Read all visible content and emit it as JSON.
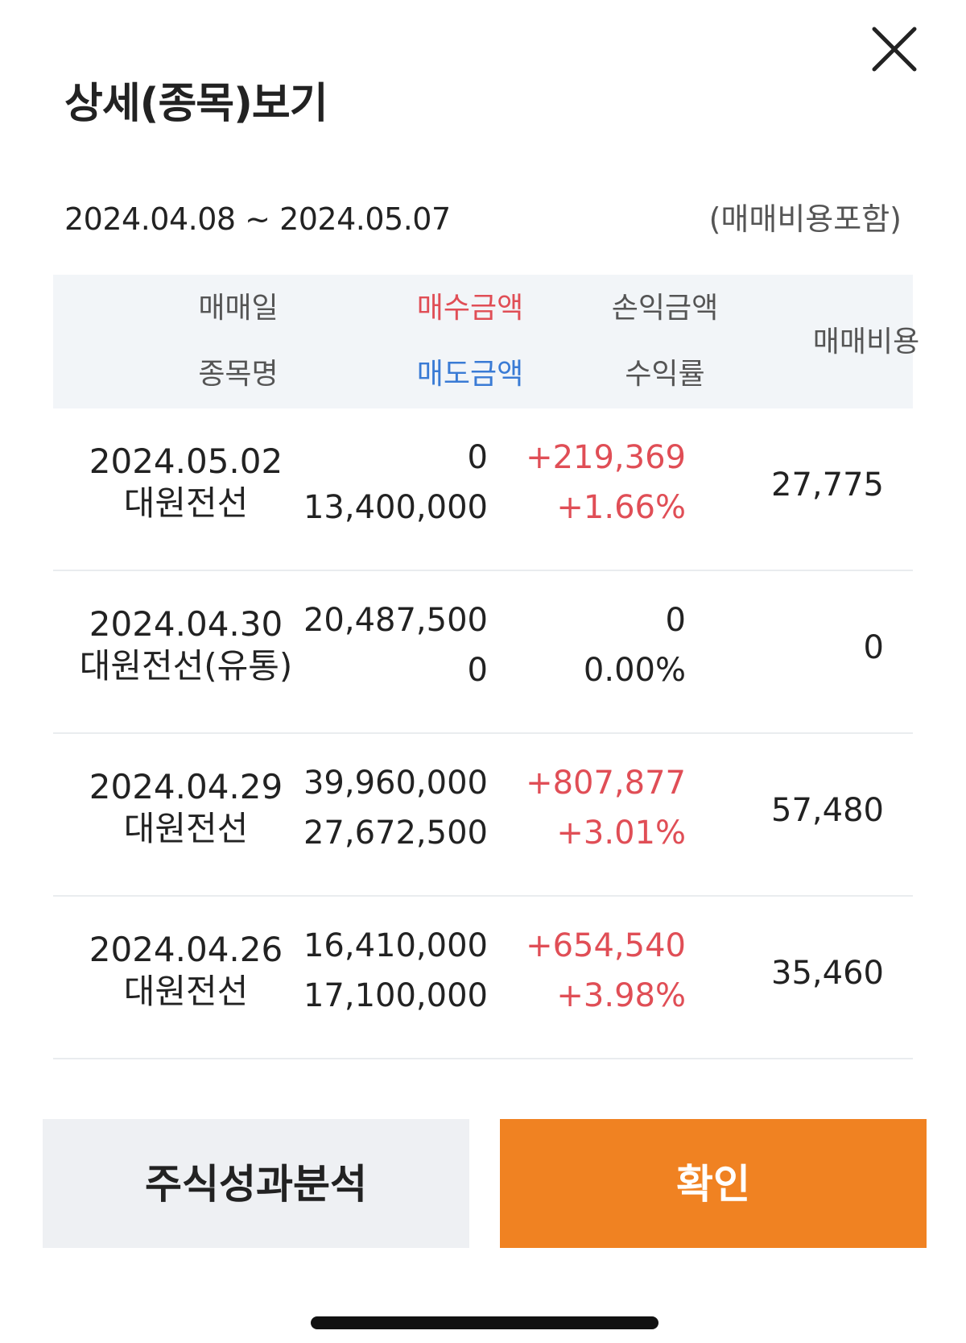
{
  "header": {
    "title": "상세(종목)보기",
    "close_icon": "close-icon"
  },
  "period": {
    "range": "2024.04.08 ~ 2024.05.07",
    "fee_note": "(매매비용포함)"
  },
  "table": {
    "headers": {
      "trade_date": "매매일",
      "stock_name": "종목명",
      "buy_amount": "매수금액",
      "sell_amount": "매도금액",
      "profit_amount": "손익금액",
      "return_rate": "수익률",
      "trade_fee": "매매비용"
    },
    "rows": [
      {
        "date": "2024.05.02",
        "name": "대원전선",
        "buy": "0",
        "sell": "13,400,000",
        "profit": "+219,369",
        "rate": "+1.66%",
        "fee": "27,775",
        "profit_positive": true
      },
      {
        "date": "2024.04.30",
        "name": "대원전선(유통)",
        "buy": "20,487,500",
        "sell": "0",
        "profit": "0",
        "rate": "0.00%",
        "fee": "0",
        "profit_positive": false
      },
      {
        "date": "2024.04.29",
        "name": "대원전선",
        "buy": "39,960,000",
        "sell": "27,672,500",
        "profit": "+807,877",
        "rate": "+3.01%",
        "fee": "57,480",
        "profit_positive": true
      },
      {
        "date": "2024.04.26",
        "name": "대원전선",
        "buy": "16,410,000",
        "sell": "17,100,000",
        "profit": "+654,540",
        "rate": "+3.98%",
        "fee": "35,460",
        "profit_positive": true
      }
    ]
  },
  "buttons": {
    "analysis": "주식성과분석",
    "confirm": "확인"
  },
  "colors": {
    "accent": "#f08222",
    "buy_label": "#e04e56",
    "sell_label": "#3a7bd5",
    "positive": "#e04e56"
  }
}
